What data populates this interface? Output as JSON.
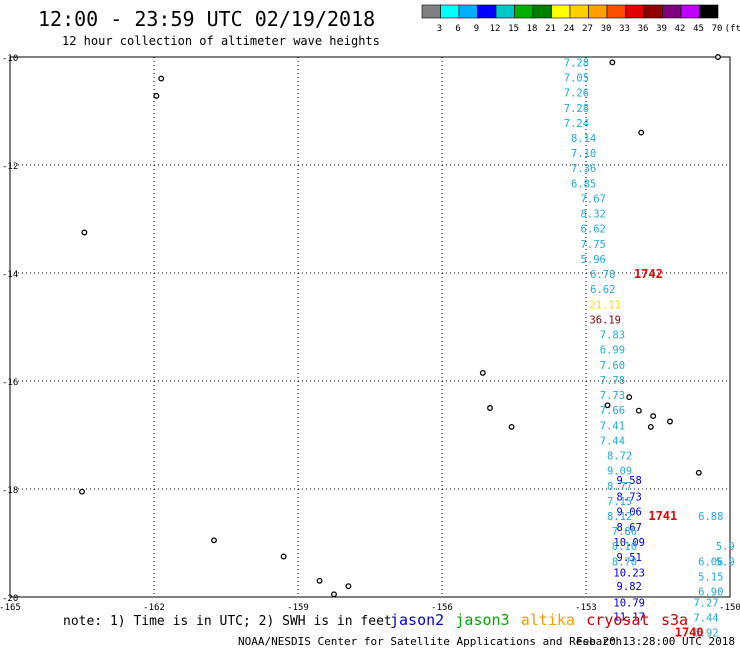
{
  "header": {
    "title": "12:00 - 23:59 UTC 02/19/2018",
    "subtitle": "12 hour collection of altimeter wave heights"
  },
  "colorbar": {
    "colors": [
      "#808080",
      "#00ffff",
      "#00b0ff",
      "#0000ff",
      "#00c8c8",
      "#00b000",
      "#008000",
      "#ffff00",
      "#ffd000",
      "#ffa000",
      "#ff5000",
      "#e00000",
      "#900000",
      "#800080",
      "#c000ff",
      "#000000"
    ],
    "labels": [
      "3",
      "6",
      "9",
      "12",
      "15",
      "18",
      "21",
      "24",
      "27",
      "30",
      "33",
      "36",
      "39",
      "42",
      "45",
      "70",
      "(ft)"
    ]
  },
  "chart_data": {
    "type": "scatter",
    "title": "12:00 - 23:59 UTC 02/19/2018",
    "subtitle": "12 hour collection of altimeter wave heights",
    "xlim": [
      -165,
      -150
    ],
    "ylim": [
      -20,
      -10
    ],
    "x_ticks": [
      "-165",
      "-162",
      "-159",
      "-156",
      "-153",
      "-150"
    ],
    "y_ticks": [
      "-10",
      "-12",
      "-14",
      "-16",
      "-18",
      "-20"
    ],
    "grid": true,
    "series": [
      {
        "name": "jason2",
        "color": "#0000cc",
        "points": [
          {
            "x": -152.1,
            "y": -17.83,
            "v": "9.58"
          },
          {
            "x": -152.1,
            "y": -18.14,
            "v": "8.73"
          },
          {
            "x": -152.1,
            "y": -18.42,
            "v": "9.06"
          },
          {
            "x": -152.1,
            "y": -18.7,
            "v": "8.67"
          },
          {
            "x": -152.1,
            "y": -18.98,
            "v": "10.09"
          },
          {
            "x": -152.1,
            "y": -19.26,
            "v": "9.51"
          },
          {
            "x": -152.1,
            "y": -19.55,
            "v": "10.23"
          },
          {
            "x": -152.1,
            "y": -19.8,
            "v": "9.82"
          },
          {
            "x": -152.1,
            "y": -20.1,
            "v": "10.79"
          },
          {
            "x": -152.1,
            "y": -20.36,
            "v": "11.17"
          }
        ]
      },
      {
        "name": "jason3",
        "color": "#00aa00",
        "points": []
      },
      {
        "name": "altika",
        "color": "#ff9900",
        "points": []
      },
      {
        "name": "cryosat",
        "color": "#cc0000",
        "points": []
      },
      {
        "name": "s3a",
        "color": "#cc0000",
        "points": []
      },
      {
        "name": "swh",
        "color": "#22aadd",
        "points": [
          {
            "x": -153.2,
            "y": -10.1,
            "v": "7.28"
          },
          {
            "x": -153.2,
            "y": -10.38,
            "v": "7.05"
          },
          {
            "x": -153.2,
            "y": -10.66,
            "v": "7.26"
          },
          {
            "x": -153.2,
            "y": -10.94,
            "v": "7.28"
          },
          {
            "x": -153.2,
            "y": -11.22,
            "v": "7.24"
          },
          {
            "x": -153.05,
            "y": -11.5,
            "v": "8.14"
          },
          {
            "x": -153.05,
            "y": -11.78,
            "v": "7.10"
          },
          {
            "x": -153.05,
            "y": -12.06,
            "v": "7.36"
          },
          {
            "x": -153.05,
            "y": -12.34,
            "v": "6.85"
          },
          {
            "x": -152.85,
            "y": -12.62,
            "v": "7.67"
          },
          {
            "x": -152.85,
            "y": -12.9,
            "v": "8.32"
          },
          {
            "x": -152.85,
            "y": -13.18,
            "v": "6.62"
          },
          {
            "x": -152.85,
            "y": -13.46,
            "v": "7.75"
          },
          {
            "x": -152.85,
            "y": -13.74,
            "v": "5.96"
          },
          {
            "x": -152.65,
            "y": -14.02,
            "v": "6.78"
          },
          {
            "x": -152.65,
            "y": -14.3,
            "v": "6.62"
          },
          {
            "x": -152.45,
            "y": -15.14,
            "v": "7.83"
          },
          {
            "x": -152.45,
            "y": -15.42,
            "v": "6.99"
          },
          {
            "x": -152.45,
            "y": -15.7,
            "v": "7.60"
          },
          {
            "x": -152.45,
            "y": -15.98,
            "v": "7.78"
          },
          {
            "x": -152.45,
            "y": -16.26,
            "v": "7.73"
          },
          {
            "x": -152.45,
            "y": -16.54,
            "v": "7.66"
          },
          {
            "x": -152.45,
            "y": -16.82,
            "v": "7.41"
          },
          {
            "x": -152.45,
            "y": -17.1,
            "v": "7.44"
          },
          {
            "x": -152.3,
            "y": -17.38,
            "v": "8.72"
          },
          {
            "x": -152.3,
            "y": -17.66,
            "v": "9.09"
          },
          {
            "x": -152.3,
            "y": -17.94,
            "v": "8.77"
          },
          {
            "x": -152.3,
            "y": -18.22,
            "v": "7.15"
          },
          {
            "x": -152.3,
            "y": -18.5,
            "v": "8.12"
          },
          {
            "x": -152.2,
            "y": -18.78,
            "v": "7.86"
          },
          {
            "x": -152.2,
            "y": -19.06,
            "v": "8.10"
          },
          {
            "x": -152.2,
            "y": -19.34,
            "v": "8.70"
          },
          {
            "x": -150.4,
            "y": -18.5,
            "v": "6.88"
          },
          {
            "x": -150.4,
            "y": -19.34,
            "v": "6.06"
          },
          {
            "x": -150.4,
            "y": -19.62,
            "v": "5.15"
          },
          {
            "x": -150.4,
            "y": -19.9,
            "v": "6.90"
          },
          {
            "x": -150.5,
            "y": -20.1,
            "v": "7.27"
          },
          {
            "x": -150.5,
            "y": -20.38,
            "v": "7.44"
          },
          {
            "x": -150.5,
            "y": -20.66,
            "v": "6.92"
          },
          {
            "x": -150.1,
            "y": -19.06,
            "v": "5.9"
          },
          {
            "x": -150.1,
            "y": -19.34,
            "v": "5.9"
          }
        ]
      },
      {
        "name": "high",
        "points": [
          {
            "x": -152.6,
            "y": -14.58,
            "v": "21.11",
            "color": "#ffdd00"
          },
          {
            "x": -152.6,
            "y": -14.86,
            "v": "36.19",
            "color": "#880000"
          }
        ]
      }
    ],
    "annotations": [
      {
        "text": "1742",
        "x": -151.7,
        "y": -14.02,
        "color": "#ee0000"
      },
      {
        "text": "1741",
        "x": -151.4,
        "y": -18.5,
        "color": "#ee0000"
      },
      {
        "text": "1740",
        "x": -150.85,
        "y": -20.66,
        "color": "#ee0000"
      }
    ]
  },
  "footer": {
    "note": "note: 1) Time is in UTC; 2) SWH is in feet",
    "legend": [
      {
        "label": "jason2",
        "color": "#0000cc"
      },
      {
        "label": "jason3",
        "color": "#00aa00"
      },
      {
        "label": "altika",
        "color": "#ff9900"
      },
      {
        "label": "cryosat",
        "color": "#cc0000"
      },
      {
        "label": "s3a",
        "color": "#cc0000"
      }
    ],
    "credit": "NOAA/NESDIS Center for Satellite Applications and Research",
    "timestamp": "Feb 20 13:28:00 UTC 2018"
  }
}
